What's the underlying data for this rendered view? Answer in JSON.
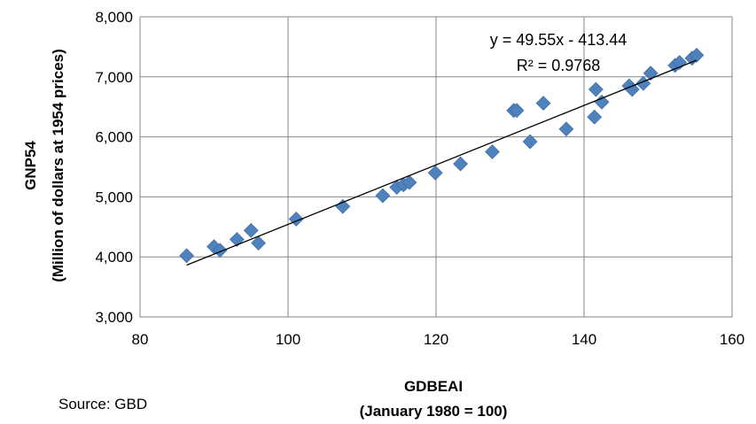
{
  "chart_data": {
    "type": "scatter",
    "xlabel": "GDBEAI",
    "xlabel_sub": "(January 1980 = 100)",
    "ylabel": "GNP54",
    "ylabel_sub": "(Million of dollars at 1954 prices)",
    "xlim": [
      80,
      160
    ],
    "ylim": [
      3000,
      8000
    ],
    "x_ticks": [
      "80",
      "100",
      "120",
      "140",
      "160"
    ],
    "y_ticks": [
      "3,000",
      "4,000",
      "5,000",
      "6,000",
      "7,000",
      "8,000"
    ],
    "grid": true,
    "marker_color": "#4F81BD",
    "trendline": {
      "equation": "y = 49.55x - 413.44",
      "r_squared": "R² = 0.9768",
      "slope": 49.55,
      "intercept": -413.44,
      "x_range": [
        86.3,
        155.2
      ],
      "color": "#000000"
    },
    "points": [
      {
        "x": 86.3,
        "y": 4020
      },
      {
        "x": 90.0,
        "y": 4170
      },
      {
        "x": 90.8,
        "y": 4110
      },
      {
        "x": 93.1,
        "y": 4290
      },
      {
        "x": 95.0,
        "y": 4440
      },
      {
        "x": 96.0,
        "y": 4230
      },
      {
        "x": 101.1,
        "y": 4630
      },
      {
        "x": 107.4,
        "y": 4840
      },
      {
        "x": 112.8,
        "y": 5020
      },
      {
        "x": 114.7,
        "y": 5160
      },
      {
        "x": 115.6,
        "y": 5200
      },
      {
        "x": 116.4,
        "y": 5240
      },
      {
        "x": 119.9,
        "y": 5400
      },
      {
        "x": 123.3,
        "y": 5550
      },
      {
        "x": 127.6,
        "y": 5750
      },
      {
        "x": 130.5,
        "y": 6440
      },
      {
        "x": 130.9,
        "y": 6440
      },
      {
        "x": 132.7,
        "y": 5920
      },
      {
        "x": 134.5,
        "y": 6560
      },
      {
        "x": 137.6,
        "y": 6130
      },
      {
        "x": 141.4,
        "y": 6330
      },
      {
        "x": 141.6,
        "y": 6790
      },
      {
        "x": 142.4,
        "y": 6580
      },
      {
        "x": 146.1,
        "y": 6850
      },
      {
        "x": 146.5,
        "y": 6790
      },
      {
        "x": 148.0,
        "y": 6890
      },
      {
        "x": 149.0,
        "y": 7060
      },
      {
        "x": 152.3,
        "y": 7190
      },
      {
        "x": 152.9,
        "y": 7240
      },
      {
        "x": 154.6,
        "y": 7310
      },
      {
        "x": 155.2,
        "y": 7360
      }
    ]
  },
  "source_text": "Source:  GBD"
}
